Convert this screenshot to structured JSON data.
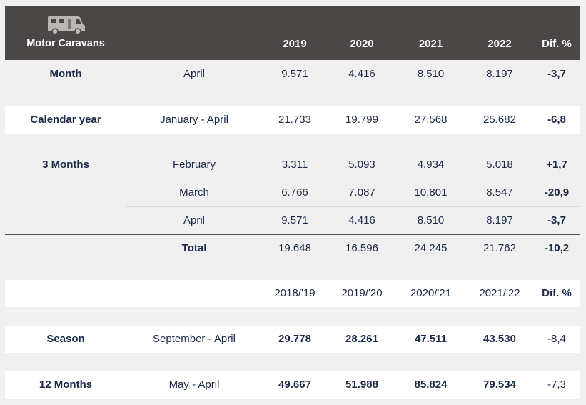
{
  "header": {
    "icon": "motorhome-icon",
    "title": "Motor Caravans",
    "cols": [
      "2019",
      "2020",
      "2021",
      "2022",
      "Dif. %"
    ]
  },
  "month": {
    "label": "Month",
    "period": "April",
    "v": [
      "9.571",
      "4.416",
      "8.510",
      "8.197",
      "-3,7"
    ]
  },
  "calendar": {
    "label": "Calendar year",
    "period": "January - April",
    "v": [
      "21.733",
      "19.799",
      "27.568",
      "25.682",
      "-6,8"
    ]
  },
  "three_months": {
    "label": "3 Months",
    "rows": [
      {
        "period": "February",
        "v": [
          "3.311",
          "5.093",
          "4.934",
          "5.018",
          "+1,7"
        ]
      },
      {
        "period": "March",
        "v": [
          "6.766",
          "7.087",
          "10.801",
          "8.547",
          "-20,9"
        ]
      },
      {
        "period": "April",
        "v": [
          "9.571",
          "4.416",
          "8.510",
          "8.197",
          "-3,7"
        ]
      }
    ],
    "total": {
      "label": "Total",
      "v": [
        "19.648",
        "16.596",
        "24.245",
        "21.762",
        "-10,2"
      ]
    }
  },
  "season_header": {
    "cols": [
      "2018/'19",
      "2019/'20",
      "2020/'21",
      "2021/'22",
      "Dif. %"
    ]
  },
  "season": {
    "label": "Season",
    "period": "September - April",
    "v": [
      "29.778",
      "28.261",
      "47.511",
      "43.530",
      "-8,4"
    ]
  },
  "twelve": {
    "label": "12 Months",
    "period": "May - April",
    "v": [
      "49.667",
      "51.988",
      "85.824",
      "79.534",
      "-7,3"
    ]
  }
}
